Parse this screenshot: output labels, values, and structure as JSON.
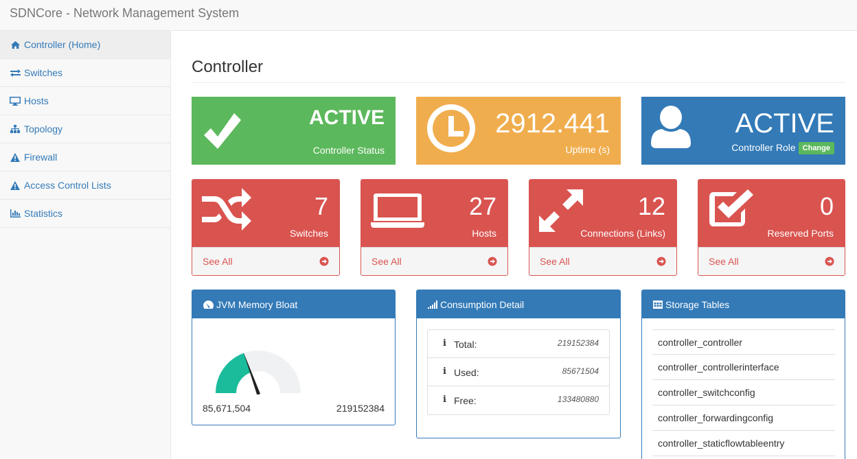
{
  "app": {
    "title": "SDNCore - Network Management System"
  },
  "sidebar": {
    "items": [
      {
        "label": "Controller (Home)",
        "icon": "home-icon",
        "active": true
      },
      {
        "label": "Switches",
        "icon": "exchange-icon"
      },
      {
        "label": "Hosts",
        "icon": "desktop-icon"
      },
      {
        "label": "Topology",
        "icon": "sitemap-icon"
      },
      {
        "label": "Firewall",
        "icon": "warning-icon"
      },
      {
        "label": "Access Control Lists",
        "icon": "warning-icon"
      },
      {
        "label": "Statistics",
        "icon": "bar-chart-icon"
      }
    ]
  },
  "page": {
    "title": "Controller"
  },
  "tiles": {
    "status": {
      "value": "ACTIVE",
      "label": "Controller Status",
      "icon": "check-icon",
      "color": "#5cb85c"
    },
    "uptime": {
      "value": "2912.441",
      "label": "Uptime (s)",
      "icon": "clock-icon",
      "color": "#f0ad4e"
    },
    "role": {
      "value": "ACTIVE",
      "label": "Controller Role",
      "badge": "Change",
      "icon": "user-icon",
      "color": "#337ab7"
    }
  },
  "stats": [
    {
      "value": "7",
      "label": "Switches",
      "link": "See All",
      "icon": "random-icon"
    },
    {
      "value": "27",
      "label": "Hosts",
      "link": "See All",
      "icon": "laptop-icon"
    },
    {
      "value": "12",
      "label": "Connections (Links)",
      "link": "See All",
      "icon": "expand-icon"
    },
    {
      "value": "0",
      "label": "Reserved Ports",
      "link": "See All",
      "icon": "check-square-icon"
    }
  ],
  "memory": {
    "title": "JVM Memory Bloat",
    "used_label": "85,671,504",
    "total_label": "219152384",
    "used_fraction": 0.39
  },
  "consumption": {
    "title": "Consumption Detail",
    "rows": [
      {
        "key": "Total:",
        "value": "219152384"
      },
      {
        "key": "Used:",
        "value": "85671504"
      },
      {
        "key": "Free:",
        "value": "133480880"
      }
    ]
  },
  "storage": {
    "title": "Storage Tables",
    "items": [
      "controller_controller",
      "controller_controllerinterface",
      "controller_switchconfig",
      "controller_forwardingconfig",
      "controller_staticflowtableentry"
    ]
  },
  "colors": {
    "red": "#d9534f",
    "blue": "#337ab7",
    "gauge": "#1abc9c"
  }
}
